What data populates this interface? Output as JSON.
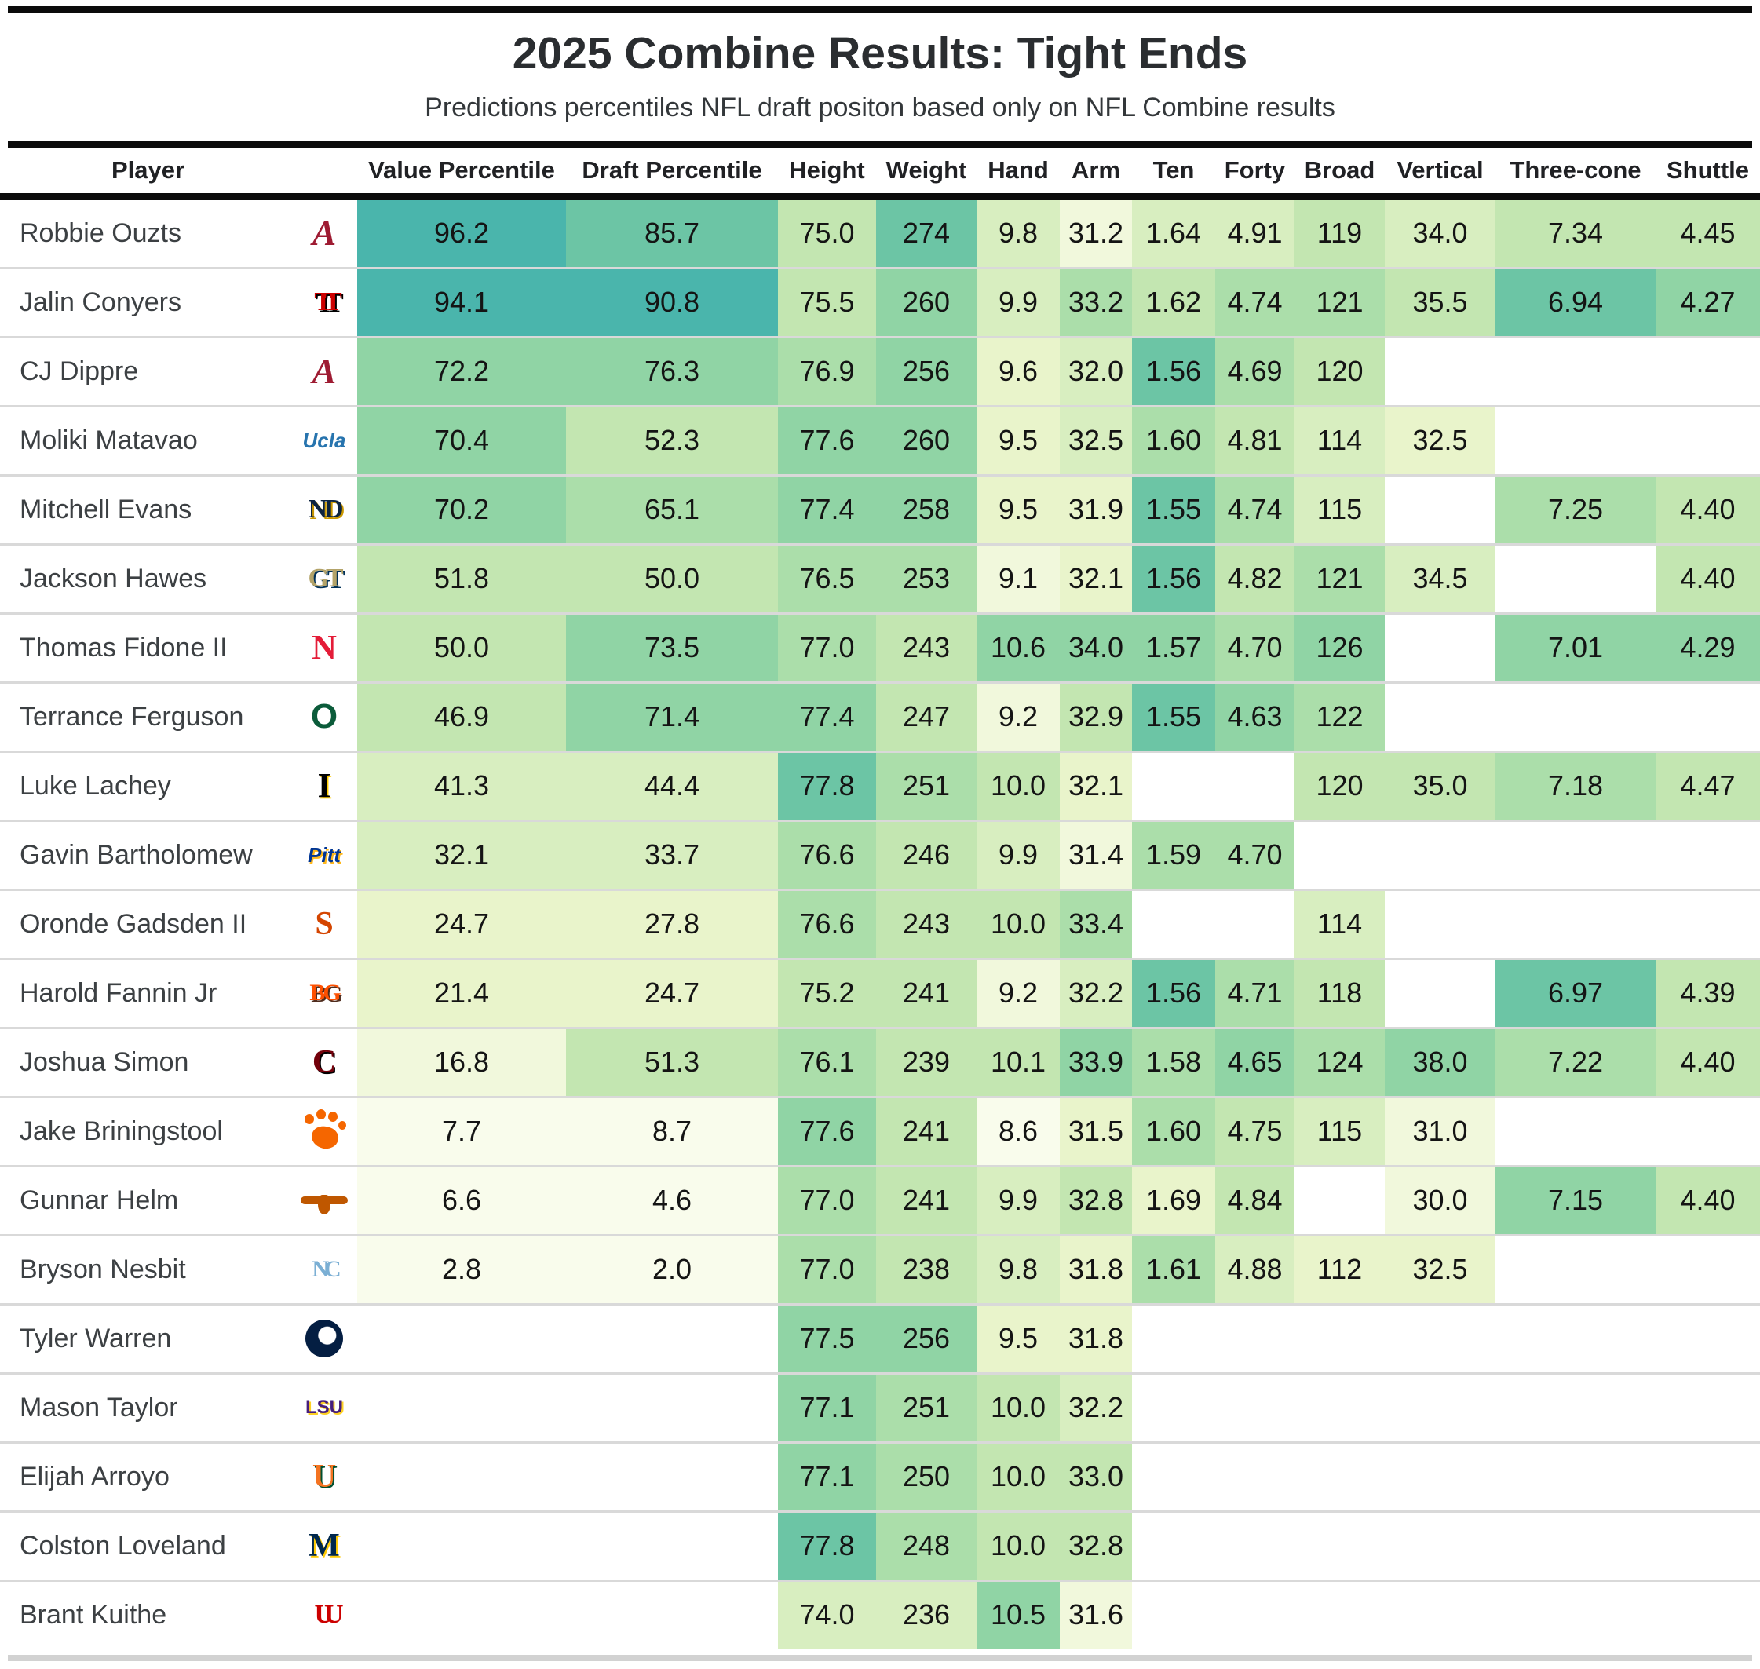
{
  "title": "2025 Combine Results: Tight Ends",
  "subtitle": "Predictions percentiles NFL draft positon based only on NFL Combine results",
  "chart_data": {
    "type": "table",
    "subtype": "heatmap-table",
    "title": "2025 Combine Results: Tight Ends",
    "subtitle": "Predictions percentiles NFL draft positon based only on NFL Combine results",
    "legend": "cell background shades from pale yellow-green (low) to teal (high); blank cell = no result",
    "heatmap_palette": [
      "#ffffff",
      "#f9fcec",
      "#f1f8dc",
      "#e9f4cb",
      "#d8eec0",
      "#c3e6b1",
      "#abdeaa",
      "#90d4a5",
      "#6cc5a5",
      "#4ab5ac"
    ],
    "columns": [
      "Player",
      "Value Percentile",
      "Draft Percentile",
      "Height",
      "Weight",
      "Hand",
      "Arm",
      "Ten",
      "Forty",
      "Broad",
      "Vertical",
      "Three-cone",
      "Shuttle"
    ],
    "column_keys": [
      "value-percentile",
      "draft-percentile",
      "height",
      "weight",
      "hand",
      "arm",
      "ten",
      "forty",
      "broad",
      "vertical",
      "three-cone",
      "shuttle"
    ],
    "rows": [
      {
        "player": "Robbie Ouzts",
        "team": {
          "id": "alabama",
          "school": "Alabama",
          "type": "text",
          "label": "A",
          "cls": "serif italic",
          "size": 46,
          "fg": "#9E1B32"
        },
        "values": [
          "96.2",
          "85.7",
          "75.0",
          "274",
          "9.8",
          "31.2",
          "1.64",
          "4.91",
          "119",
          "34.0",
          "7.34",
          "4.45"
        ],
        "tones": [
          9,
          8,
          5,
          8,
          4,
          2,
          4,
          4,
          5,
          4,
          5,
          5
        ]
      },
      {
        "player": "Jalin Conyers",
        "team": {
          "id": "texas-tech",
          "school": "Texas Tech",
          "type": "text",
          "label": "TT",
          "cls": "serif",
          "size": 34,
          "fg": "#CC0000",
          "shadow": "#000000",
          "ls": -10
        },
        "values": [
          "94.1",
          "90.8",
          "75.5",
          "260",
          "9.9",
          "33.2",
          "1.62",
          "4.74",
          "121",
          "35.5",
          "6.94",
          "4.27"
        ],
        "tones": [
          9,
          9,
          5,
          7,
          4,
          6,
          5,
          6,
          6,
          5,
          8,
          7
        ]
      },
      {
        "player": "CJ Dippre",
        "team": {
          "id": "alabama",
          "school": "Alabama",
          "type": "text",
          "label": "A",
          "cls": "serif italic",
          "size": 46,
          "fg": "#9E1B32"
        },
        "values": [
          "72.2",
          "76.3",
          "76.9",
          "256",
          "9.6",
          "32.0",
          "1.56",
          "4.69",
          "120",
          "",
          "",
          ""
        ],
        "tones": [
          7,
          7,
          6,
          7,
          3,
          4,
          8,
          6,
          5,
          0,
          0,
          0
        ]
      },
      {
        "player": "Moliki Matavao",
        "team": {
          "id": "ucla",
          "school": "UCLA",
          "type": "text",
          "label": "Ucla",
          "cls": "italic",
          "size": 26,
          "fg": "#2774AE"
        },
        "values": [
          "70.4",
          "52.3",
          "77.6",
          "260",
          "9.5",
          "32.5",
          "1.60",
          "4.81",
          "114",
          "32.5",
          "",
          ""
        ],
        "tones": [
          7,
          5,
          7,
          7,
          3,
          4,
          6,
          5,
          4,
          3,
          0,
          0
        ]
      },
      {
        "player": "Mitchell Evans",
        "team": {
          "id": "notre-dame",
          "school": "Notre Dame",
          "type": "text",
          "label": "ND",
          "cls": "serif",
          "size": 34,
          "fg": "#0C2340",
          "shadow": "#C99700",
          "ls": -4
        },
        "values": [
          "70.2",
          "65.1",
          "77.4",
          "258",
          "9.5",
          "31.9",
          "1.55",
          "4.74",
          "115",
          "",
          "7.25",
          "4.40"
        ],
        "tones": [
          7,
          6,
          7,
          7,
          3,
          3,
          8,
          6,
          4,
          0,
          6,
          5
        ]
      },
      {
        "player": "Jackson Hawes",
        "team": {
          "id": "georgia-tech",
          "school": "Georgia Tech",
          "type": "text",
          "label": "GT",
          "cls": "serif",
          "size": 34,
          "fg": "#B3A369",
          "shadow": "#003057",
          "ls": -4
        },
        "values": [
          "51.8",
          "50.0",
          "76.5",
          "253",
          "9.1",
          "32.1",
          "1.56",
          "4.82",
          "121",
          "34.5",
          "",
          "4.40"
        ],
        "tones": [
          5,
          5,
          6,
          6,
          2,
          3,
          8,
          5,
          6,
          4,
          0,
          5
        ]
      },
      {
        "player": "Thomas Fidone II",
        "team": {
          "id": "nebraska",
          "school": "Nebraska",
          "type": "text",
          "label": "N",
          "cls": "serif",
          "size": 44,
          "fg": "#E41C38"
        },
        "values": [
          "50.0",
          "73.5",
          "77.0",
          "243",
          "10.6",
          "34.0",
          "1.57",
          "4.70",
          "126",
          "",
          "7.01",
          "4.29"
        ],
        "tones": [
          5,
          7,
          6,
          5,
          7,
          7,
          7,
          6,
          7,
          0,
          7,
          7
        ]
      },
      {
        "player": "Terrance Ferguson",
        "team": {
          "id": "oregon",
          "school": "Oregon",
          "type": "text",
          "label": "O",
          "cls": "",
          "size": 44,
          "fg": "#0B5B3A"
        },
        "values": [
          "46.9",
          "71.4",
          "77.4",
          "247",
          "9.2",
          "32.9",
          "1.55",
          "4.63",
          "122",
          "",
          "",
          ""
        ],
        "tones": [
          5,
          7,
          7,
          5,
          2,
          5,
          8,
          7,
          6,
          0,
          0,
          0
        ]
      },
      {
        "player": "Luke Lachey",
        "team": {
          "id": "iowa",
          "school": "Iowa",
          "type": "text",
          "label": "I",
          "cls": "serif",
          "size": 44,
          "fg": "#000000",
          "shadow": "#FFCD00"
        },
        "values": [
          "41.3",
          "44.4",
          "77.8",
          "251",
          "10.0",
          "32.1",
          "",
          "",
          "120",
          "35.0",
          "7.18",
          "4.47"
        ],
        "tones": [
          4,
          4,
          8,
          6,
          5,
          3,
          0,
          0,
          5,
          5,
          6,
          5
        ]
      },
      {
        "player": "Gavin Bartholomew",
        "team": {
          "id": "pittsburgh",
          "school": "Pitt",
          "type": "text",
          "label": "Pitt",
          "cls": "italic",
          "size": 26,
          "fg": "#003594",
          "shadow": "#FFB81C"
        },
        "values": [
          "32.1",
          "33.7",
          "76.6",
          "246",
          "9.9",
          "31.4",
          "1.59",
          "4.70",
          "",
          "",
          "",
          ""
        ],
        "tones": [
          4,
          4,
          6,
          5,
          4,
          2,
          6,
          6,
          0,
          0,
          0,
          0
        ]
      },
      {
        "player": "Oronde Gadsden II",
        "team": {
          "id": "syracuse",
          "school": "Syracuse",
          "type": "text",
          "label": "S",
          "cls": "serif",
          "size": 42,
          "fg": "#D44500"
        },
        "values": [
          "24.7",
          "27.8",
          "76.6",
          "243",
          "10.0",
          "33.4",
          "",
          "",
          "114",
          "",
          "",
          ""
        ],
        "tones": [
          3,
          3,
          6,
          5,
          5,
          6,
          0,
          0,
          4,
          0,
          0,
          0
        ]
      },
      {
        "player": "Harold Fannin Jr",
        "team": {
          "id": "bowling-green",
          "school": "Bowling Green",
          "type": "text",
          "label": "BG",
          "cls": "serif",
          "size": 30,
          "fg": "#FE5000",
          "shadow": "#4F2C1D",
          "ls": -3
        },
        "values": [
          "21.4",
          "24.7",
          "75.2",
          "241",
          "9.2",
          "32.2",
          "1.56",
          "4.71",
          "118",
          "",
          "6.97",
          "4.39"
        ],
        "tones": [
          3,
          3,
          5,
          5,
          2,
          4,
          8,
          6,
          5,
          0,
          8,
          5
        ]
      },
      {
        "player": "Joshua Simon",
        "team": {
          "id": "south-carolina",
          "school": "South Carolina",
          "type": "text",
          "label": "C",
          "cls": "serif",
          "size": 42,
          "fg": "#73000A",
          "shadow": "#000000"
        },
        "values": [
          "16.8",
          "51.3",
          "76.1",
          "239",
          "10.1",
          "33.9",
          "1.58",
          "4.65",
          "124",
          "38.0",
          "7.22",
          "4.40"
        ],
        "tones": [
          2,
          5,
          6,
          5,
          5,
          7,
          6,
          7,
          6,
          7,
          6,
          5
        ]
      },
      {
        "player": "Jake Briningstool",
        "team": {
          "id": "clemson",
          "school": "Clemson",
          "type": "paw",
          "label": "",
          "fg": "#F56600"
        },
        "values": [
          "7.7",
          "8.7",
          "77.6",
          "241",
          "8.6",
          "31.5",
          "1.60",
          "4.75",
          "115",
          "31.0",
          "",
          ""
        ],
        "tones": [
          1,
          1,
          7,
          5,
          1,
          3,
          6,
          5,
          4,
          2,
          0,
          0
        ]
      },
      {
        "player": "Gunnar Helm",
        "team": {
          "id": "texas",
          "school": "Texas",
          "type": "horn",
          "label": "",
          "fg": "#BF5700"
        },
        "values": [
          "6.6",
          "4.6",
          "77.0",
          "241",
          "9.9",
          "32.8",
          "1.69",
          "4.84",
          "",
          "30.0",
          "7.15",
          "4.40"
        ],
        "tones": [
          1,
          1,
          6,
          5,
          4,
          5,
          3,
          5,
          0,
          2,
          7,
          5
        ]
      },
      {
        "player": "Bryson Nesbit",
        "team": {
          "id": "north-carolina",
          "school": "North Carolina",
          "type": "text",
          "label": "NC",
          "cls": "serif",
          "size": 30,
          "fg": "#7BAFD4",
          "ls": -6
        },
        "values": [
          "2.8",
          "2.0",
          "77.0",
          "238",
          "9.8",
          "31.8",
          "1.61",
          "4.88",
          "112",
          "32.5",
          "",
          ""
        ],
        "tones": [
          1,
          1,
          6,
          5,
          4,
          3,
          6,
          4,
          3,
          3,
          0,
          0
        ]
      },
      {
        "player": "Tyler Warren",
        "team": {
          "id": "penn-state",
          "school": "Penn State",
          "type": "circle",
          "label": "",
          "fg": "#041E42"
        },
        "values": [
          "",
          "",
          "77.5",
          "256",
          "9.5",
          "31.8",
          "",
          "",
          "",
          "",
          "",
          ""
        ],
        "tones": [
          0,
          0,
          7,
          7,
          3,
          3,
          0,
          0,
          0,
          0,
          0,
          0
        ]
      },
      {
        "player": "Mason Taylor",
        "team": {
          "id": "lsu",
          "school": "LSU",
          "type": "text",
          "label": "LSU",
          "cls": "",
          "size": 24,
          "fg": "#461D7C",
          "shadow": "#FDD023"
        },
        "values": [
          "",
          "",
          "77.1",
          "251",
          "10.0",
          "32.2",
          "",
          "",
          "",
          "",
          "",
          ""
        ],
        "tones": [
          0,
          0,
          7,
          6,
          5,
          4,
          0,
          0,
          0,
          0,
          0,
          0
        ]
      },
      {
        "player": "Elijah Arroyo",
        "team": {
          "id": "miami",
          "school": "Miami",
          "type": "text",
          "label": "U",
          "cls": "serif",
          "size": 42,
          "fg": "#F47321",
          "shadow": "#005030"
        },
        "values": [
          "",
          "",
          "77.1",
          "250",
          "10.0",
          "33.0",
          "",
          "",
          "",
          "",
          "",
          ""
        ],
        "tones": [
          0,
          0,
          7,
          6,
          5,
          5,
          0,
          0,
          0,
          0,
          0,
          0
        ]
      },
      {
        "player": "Colston Loveland",
        "team": {
          "id": "michigan",
          "school": "Michigan",
          "type": "text",
          "label": "M",
          "cls": "serif",
          "size": 42,
          "fg": "#00274C",
          "shadow": "#FFCB05"
        },
        "values": [
          "",
          "",
          "77.8",
          "248",
          "10.0",
          "32.8",
          "",
          "",
          "",
          "",
          "",
          ""
        ],
        "tones": [
          0,
          0,
          8,
          6,
          5,
          5,
          0,
          0,
          0,
          0,
          0,
          0
        ]
      },
      {
        "player": "Brant Kuithe",
        "team": {
          "id": "utah",
          "school": "Utah",
          "type": "text",
          "label": "UU",
          "cls": "serif",
          "size": 34,
          "fg": "#CC0000",
          "ls": -12
        },
        "values": [
          "",
          "",
          "74.0",
          "236",
          "10.5",
          "31.6",
          "",
          "",
          "",
          "",
          "",
          ""
        ],
        "tones": [
          0,
          0,
          4,
          4,
          7,
          2,
          0,
          0,
          0,
          0,
          0,
          0
        ]
      }
    ]
  }
}
